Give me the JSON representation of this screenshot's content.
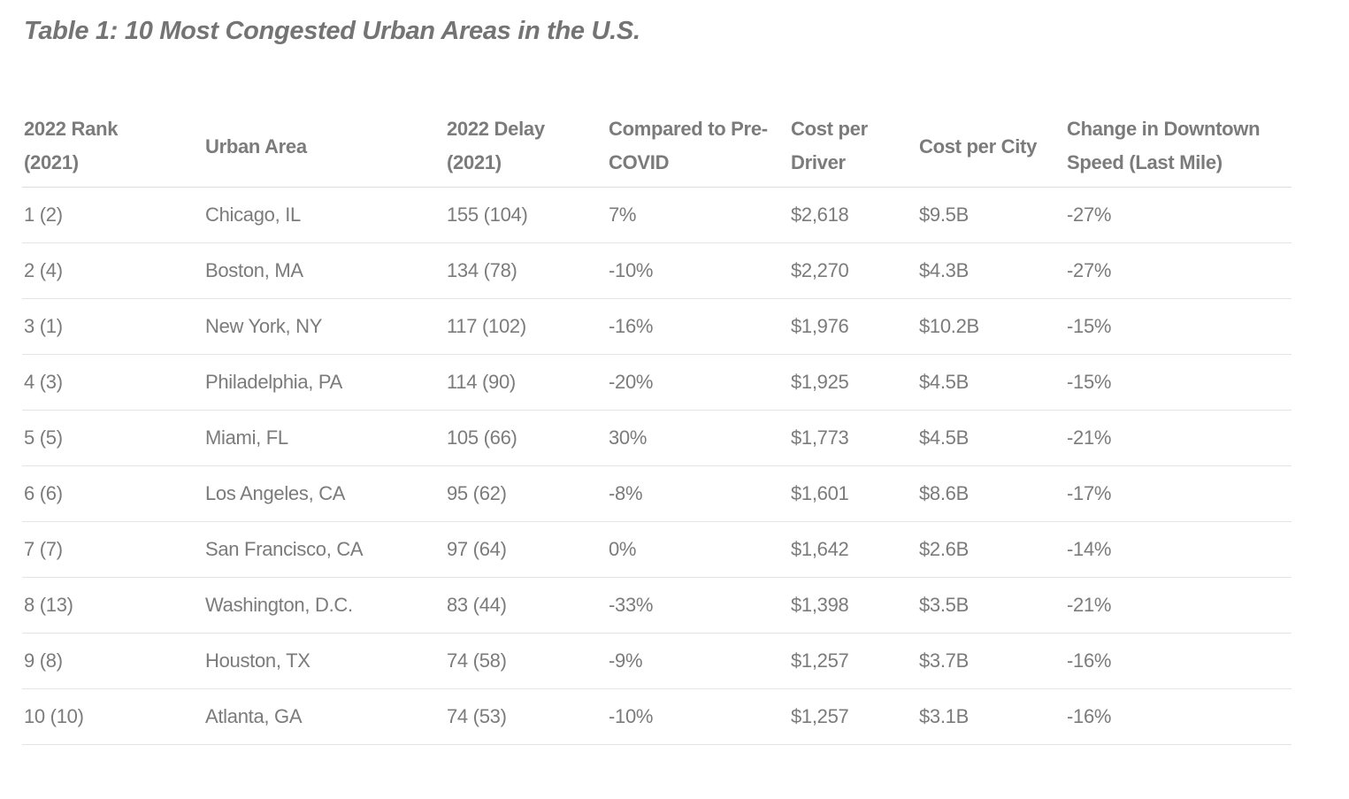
{
  "title": "Table 1: 10 Most Congested Urban Areas in the U.S.",
  "colors": {
    "text": "#7b7b7b",
    "title_text": "#747474",
    "header_divider": "#dcdcdc",
    "row_divider": "#e4e4e4",
    "background": "#ffffff"
  },
  "chart_data": {
    "type": "table",
    "title": "Table 1: 10 Most Congested Urban Areas in the U.S.",
    "columns": [
      "2022 Rank (2021)",
      "Urban Area",
      "2022 Delay (2021)",
      "Compared to Pre-COVID",
      "Cost per Driver",
      "Cost per City",
      "Change in Downtown Speed (Last Mile)"
    ],
    "column_keys": [
      "rank",
      "urban-area",
      "delay",
      "vs-pre-covid",
      "cost-per-driver",
      "cost-per-city",
      "downtown-speed-change"
    ],
    "rows": [
      [
        "1 (2)",
        "Chicago, IL",
        "155 (104)",
        "7%",
        "$2,618",
        "$9.5B",
        "-27%"
      ],
      [
        "2 (4)",
        "Boston, MA",
        "134 (78)",
        "-10%",
        "$2,270",
        "$4.3B",
        "-27%"
      ],
      [
        "3 (1)",
        "New York, NY",
        "117 (102)",
        "-16%",
        "$1,976",
        "$10.2B",
        "-15%"
      ],
      [
        "4 (3)",
        "Philadelphia, PA",
        "114 (90)",
        "-20%",
        "$1,925",
        "$4.5B",
        "-15%"
      ],
      [
        "5 (5)",
        "Miami, FL",
        "105 (66)",
        "30%",
        "$1,773",
        "$4.5B",
        "-21%"
      ],
      [
        "6 (6)",
        "Los Angeles, CA",
        "95 (62)",
        "-8%",
        "$1,601",
        "$8.6B",
        "-17%"
      ],
      [
        "7 (7)",
        "San Francisco, CA",
        "97 (64)",
        "0%",
        "$1,642",
        "$2.6B",
        "-14%"
      ],
      [
        "8 (13)",
        "Washington, D.C.",
        "83 (44)",
        "-33%",
        "$1,398",
        "$3.5B",
        "-21%"
      ],
      [
        "9 (8)",
        "Houston, TX",
        "74 (58)",
        "-9%",
        "$1,257",
        "$3.7B",
        "-16%"
      ],
      [
        "10 (10)",
        "Atlanta, GA",
        "74 (53)",
        "-10%",
        "$1,257",
        "$3.1B",
        "-16%"
      ]
    ]
  }
}
